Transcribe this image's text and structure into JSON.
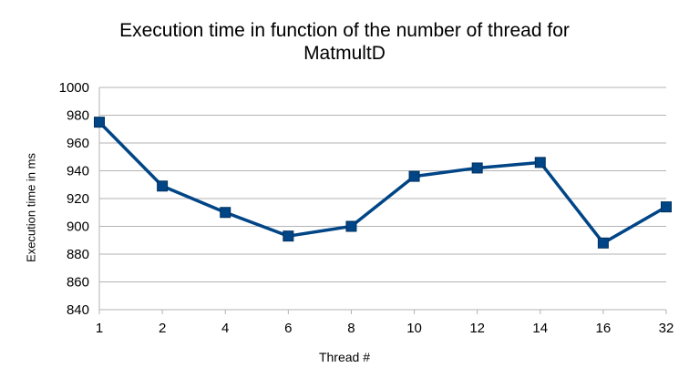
{
  "chart_data": {
    "type": "line",
    "title": "Execution time in function of the number of thread for MatmultD",
    "title_lines": [
      "Execution time in function of the number of thread for",
      "MatmultD"
    ],
    "xlabel": "Thread #",
    "ylabel": "Execution time in ms",
    "categories": [
      "1",
      "2",
      "4",
      "6",
      "8",
      "10",
      "12",
      "14",
      "16",
      "32"
    ],
    "series": [
      {
        "values": [
          975,
          929,
          910,
          893,
          900,
          936,
          942,
          946,
          888,
          914
        ]
      }
    ],
    "ylim": [
      840,
      1000
    ],
    "yticks": [
      840,
      860,
      880,
      900,
      920,
      940,
      960,
      980,
      1000
    ],
    "grid": true,
    "legend": "none",
    "colors": {
      "line": "#004586",
      "marker": "#004586",
      "grid": "#b3b3b3",
      "axis": "#b3b3b3"
    },
    "marker": "square"
  }
}
